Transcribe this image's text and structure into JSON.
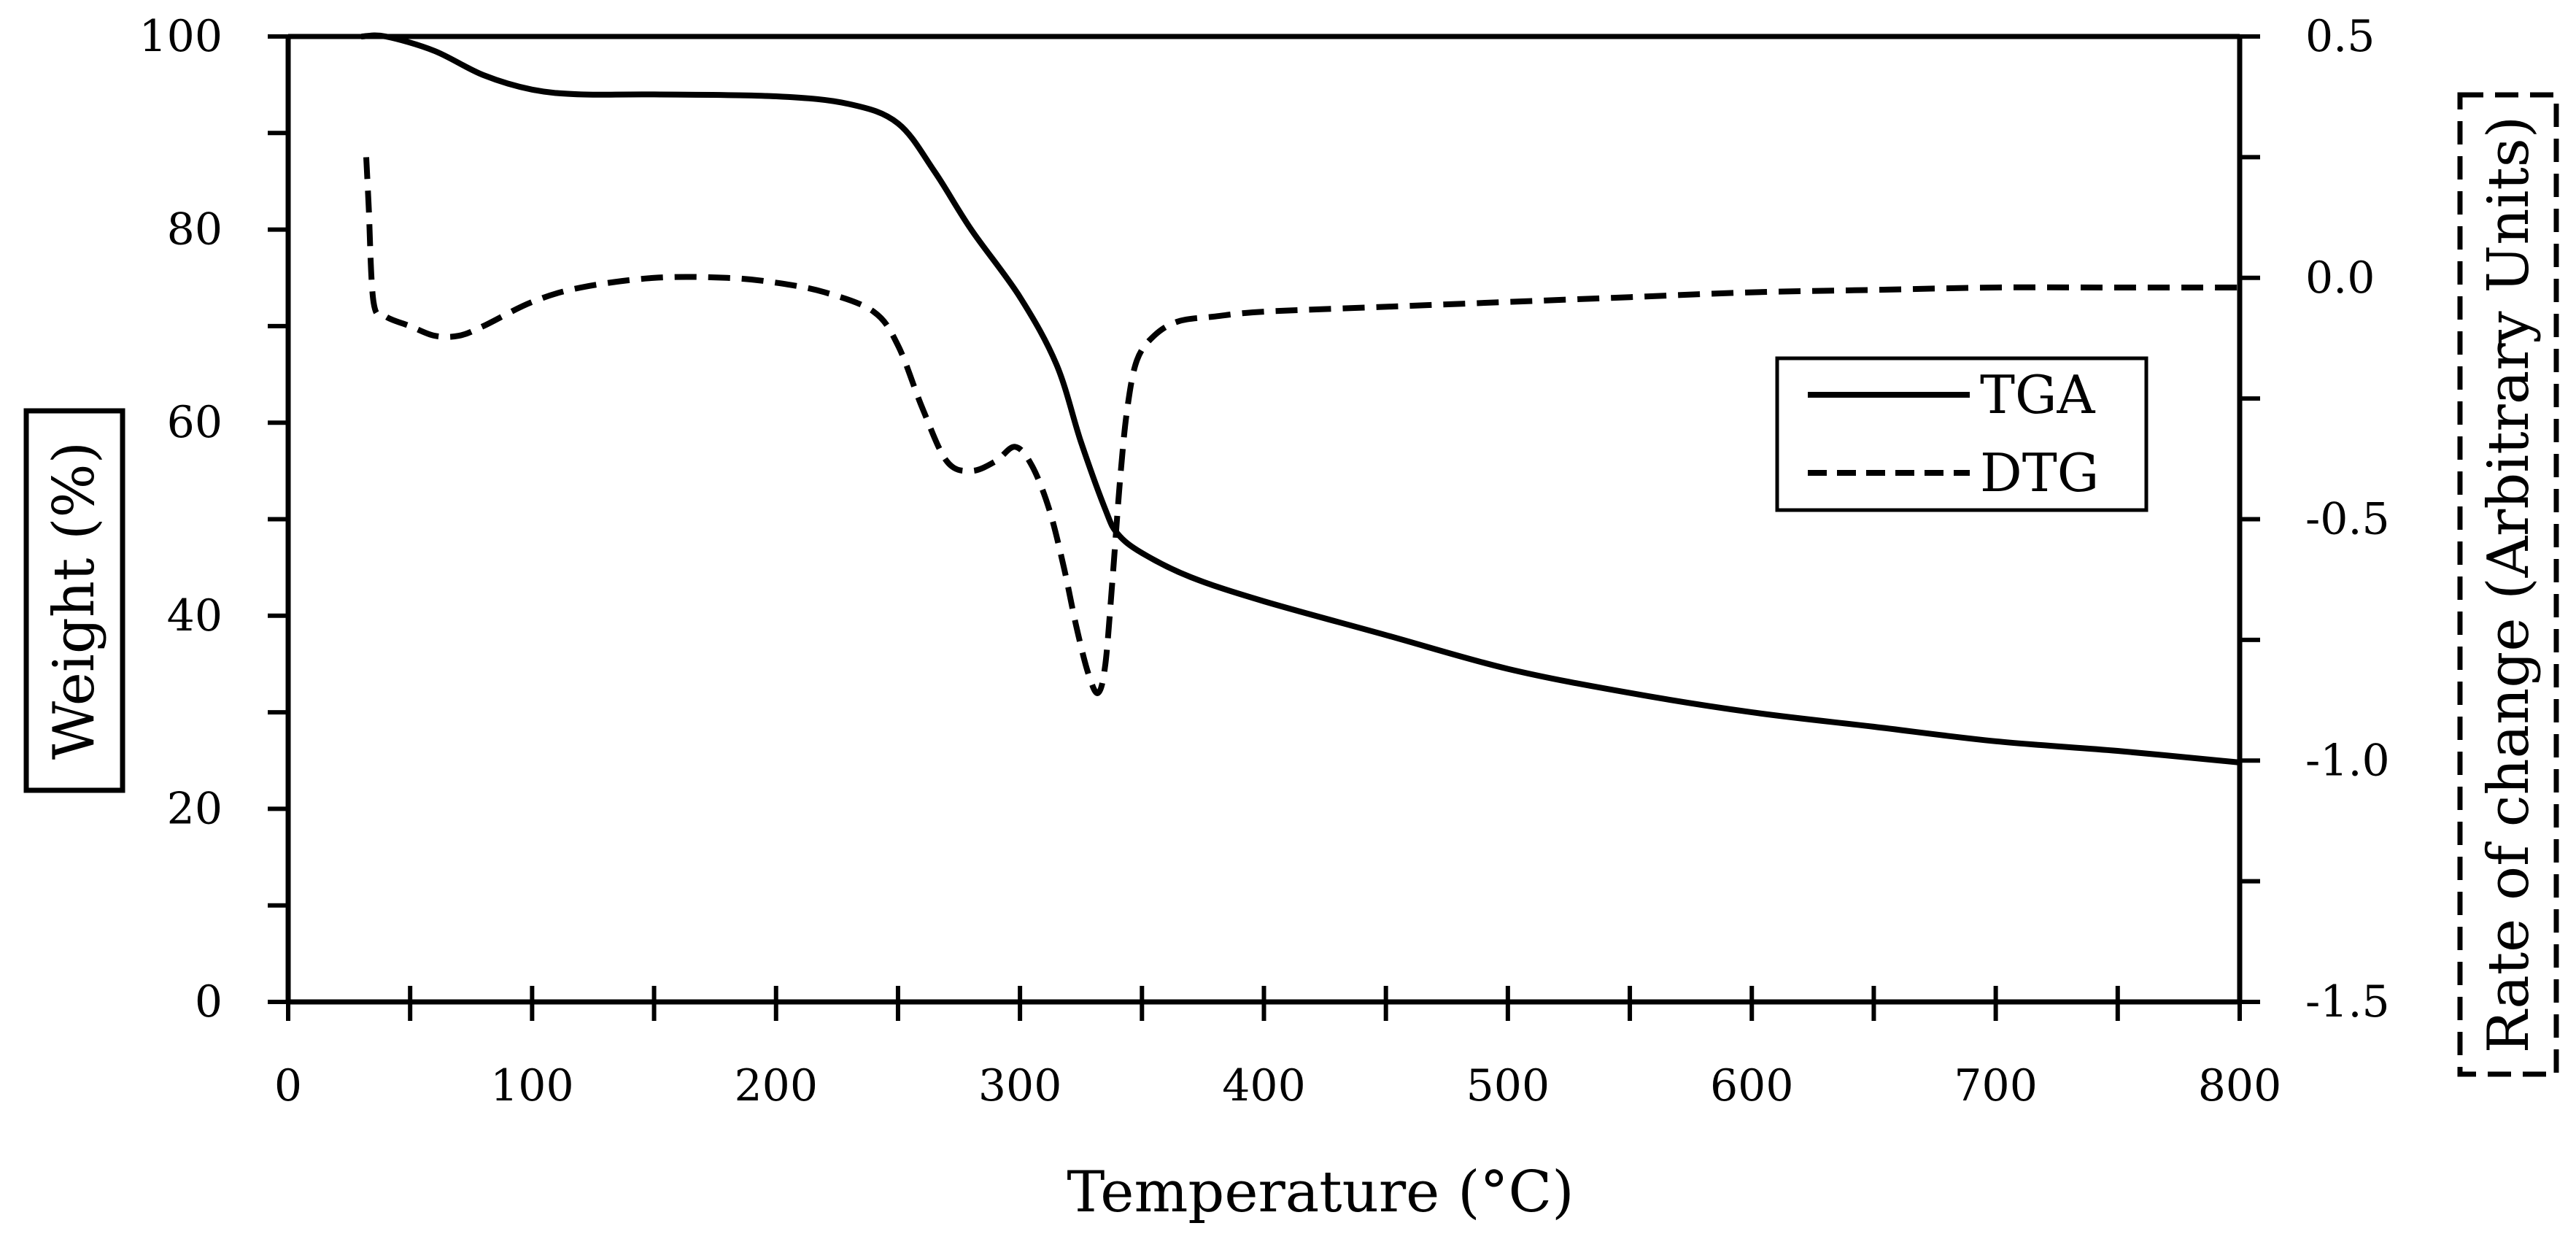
{
  "chart_data": {
    "type": "line",
    "title": "",
    "xlabel": "Temperature (°C)",
    "ylabel": "Weight (%)",
    "y2label": "Rate of change (Arbitrary Units)",
    "xlim": [
      0,
      800
    ],
    "ylim": [
      0,
      100
    ],
    "y2lim": [
      -1.5,
      0.5
    ],
    "x_ticks": [
      "0",
      "100",
      "200",
      "300",
      "400",
      "500",
      "600",
      "700",
      "800"
    ],
    "y_ticks": [
      "0",
      "20",
      "40",
      "60",
      "80",
      "100"
    ],
    "y2_ticks": [
      "-1.5",
      "-1.0",
      "-0.5",
      "0.0",
      "0.5"
    ],
    "x_tick_values": [
      0,
      100,
      200,
      300,
      400,
      500,
      600,
      700,
      800
    ],
    "y_tick_values": [
      0,
      20,
      40,
      60,
      80,
      100
    ],
    "y2_tick_values": [
      -1.5,
      -1.0,
      -0.5,
      0.0,
      0.5
    ],
    "grid": false,
    "legend_position": "center-right",
    "series": [
      {
        "name": "TGA",
        "axis": "left",
        "style": "solid",
        "color": "#000000",
        "x": [
          30,
          40,
          60,
          80,
          100,
          120,
          150,
          200,
          230,
          250,
          265,
          280,
          300,
          315,
          325,
          335,
          340,
          350,
          370,
          400,
          450,
          500,
          550,
          600,
          650,
          700,
          750,
          800
        ],
        "y": [
          100,
          100,
          98.5,
          96,
          94.5,
          94,
          94,
          93.8,
          93,
          91,
          86,
          80,
          73,
          66,
          58,
          51,
          48.5,
          46.5,
          44,
          41.5,
          38,
          34.5,
          32,
          30,
          28.5,
          27,
          26,
          24.8
        ]
      },
      {
        "name": "DTG",
        "axis": "right",
        "style": "dashed",
        "color": "#000000",
        "x": [
          32,
          33,
          35,
          40,
          50,
          60,
          70,
          80,
          100,
          120,
          150,
          180,
          200,
          220,
          240,
          250,
          260,
          270,
          280,
          290,
          298,
          305,
          312,
          318,
          323,
          328,
          332,
          335,
          338,
          341,
          344,
          348,
          355,
          365,
          380,
          400,
          450,
          500,
          550,
          600,
          650,
          700,
          750,
          800
        ],
        "y": [
          0.25,
          0.15,
          -0.05,
          -0.08,
          -0.1,
          -0.12,
          -0.12,
          -0.1,
          -0.05,
          -0.02,
          0.0,
          0.0,
          -0.01,
          -0.03,
          -0.07,
          -0.14,
          -0.27,
          -0.38,
          -0.4,
          -0.38,
          -0.35,
          -0.39,
          -0.48,
          -0.6,
          -0.72,
          -0.82,
          -0.86,
          -0.8,
          -0.62,
          -0.42,
          -0.27,
          -0.17,
          -0.12,
          -0.09,
          -0.08,
          -0.07,
          -0.06,
          -0.05,
          -0.04,
          -0.03,
          -0.025,
          -0.02,
          -0.02,
          -0.02
        ]
      }
    ]
  }
}
